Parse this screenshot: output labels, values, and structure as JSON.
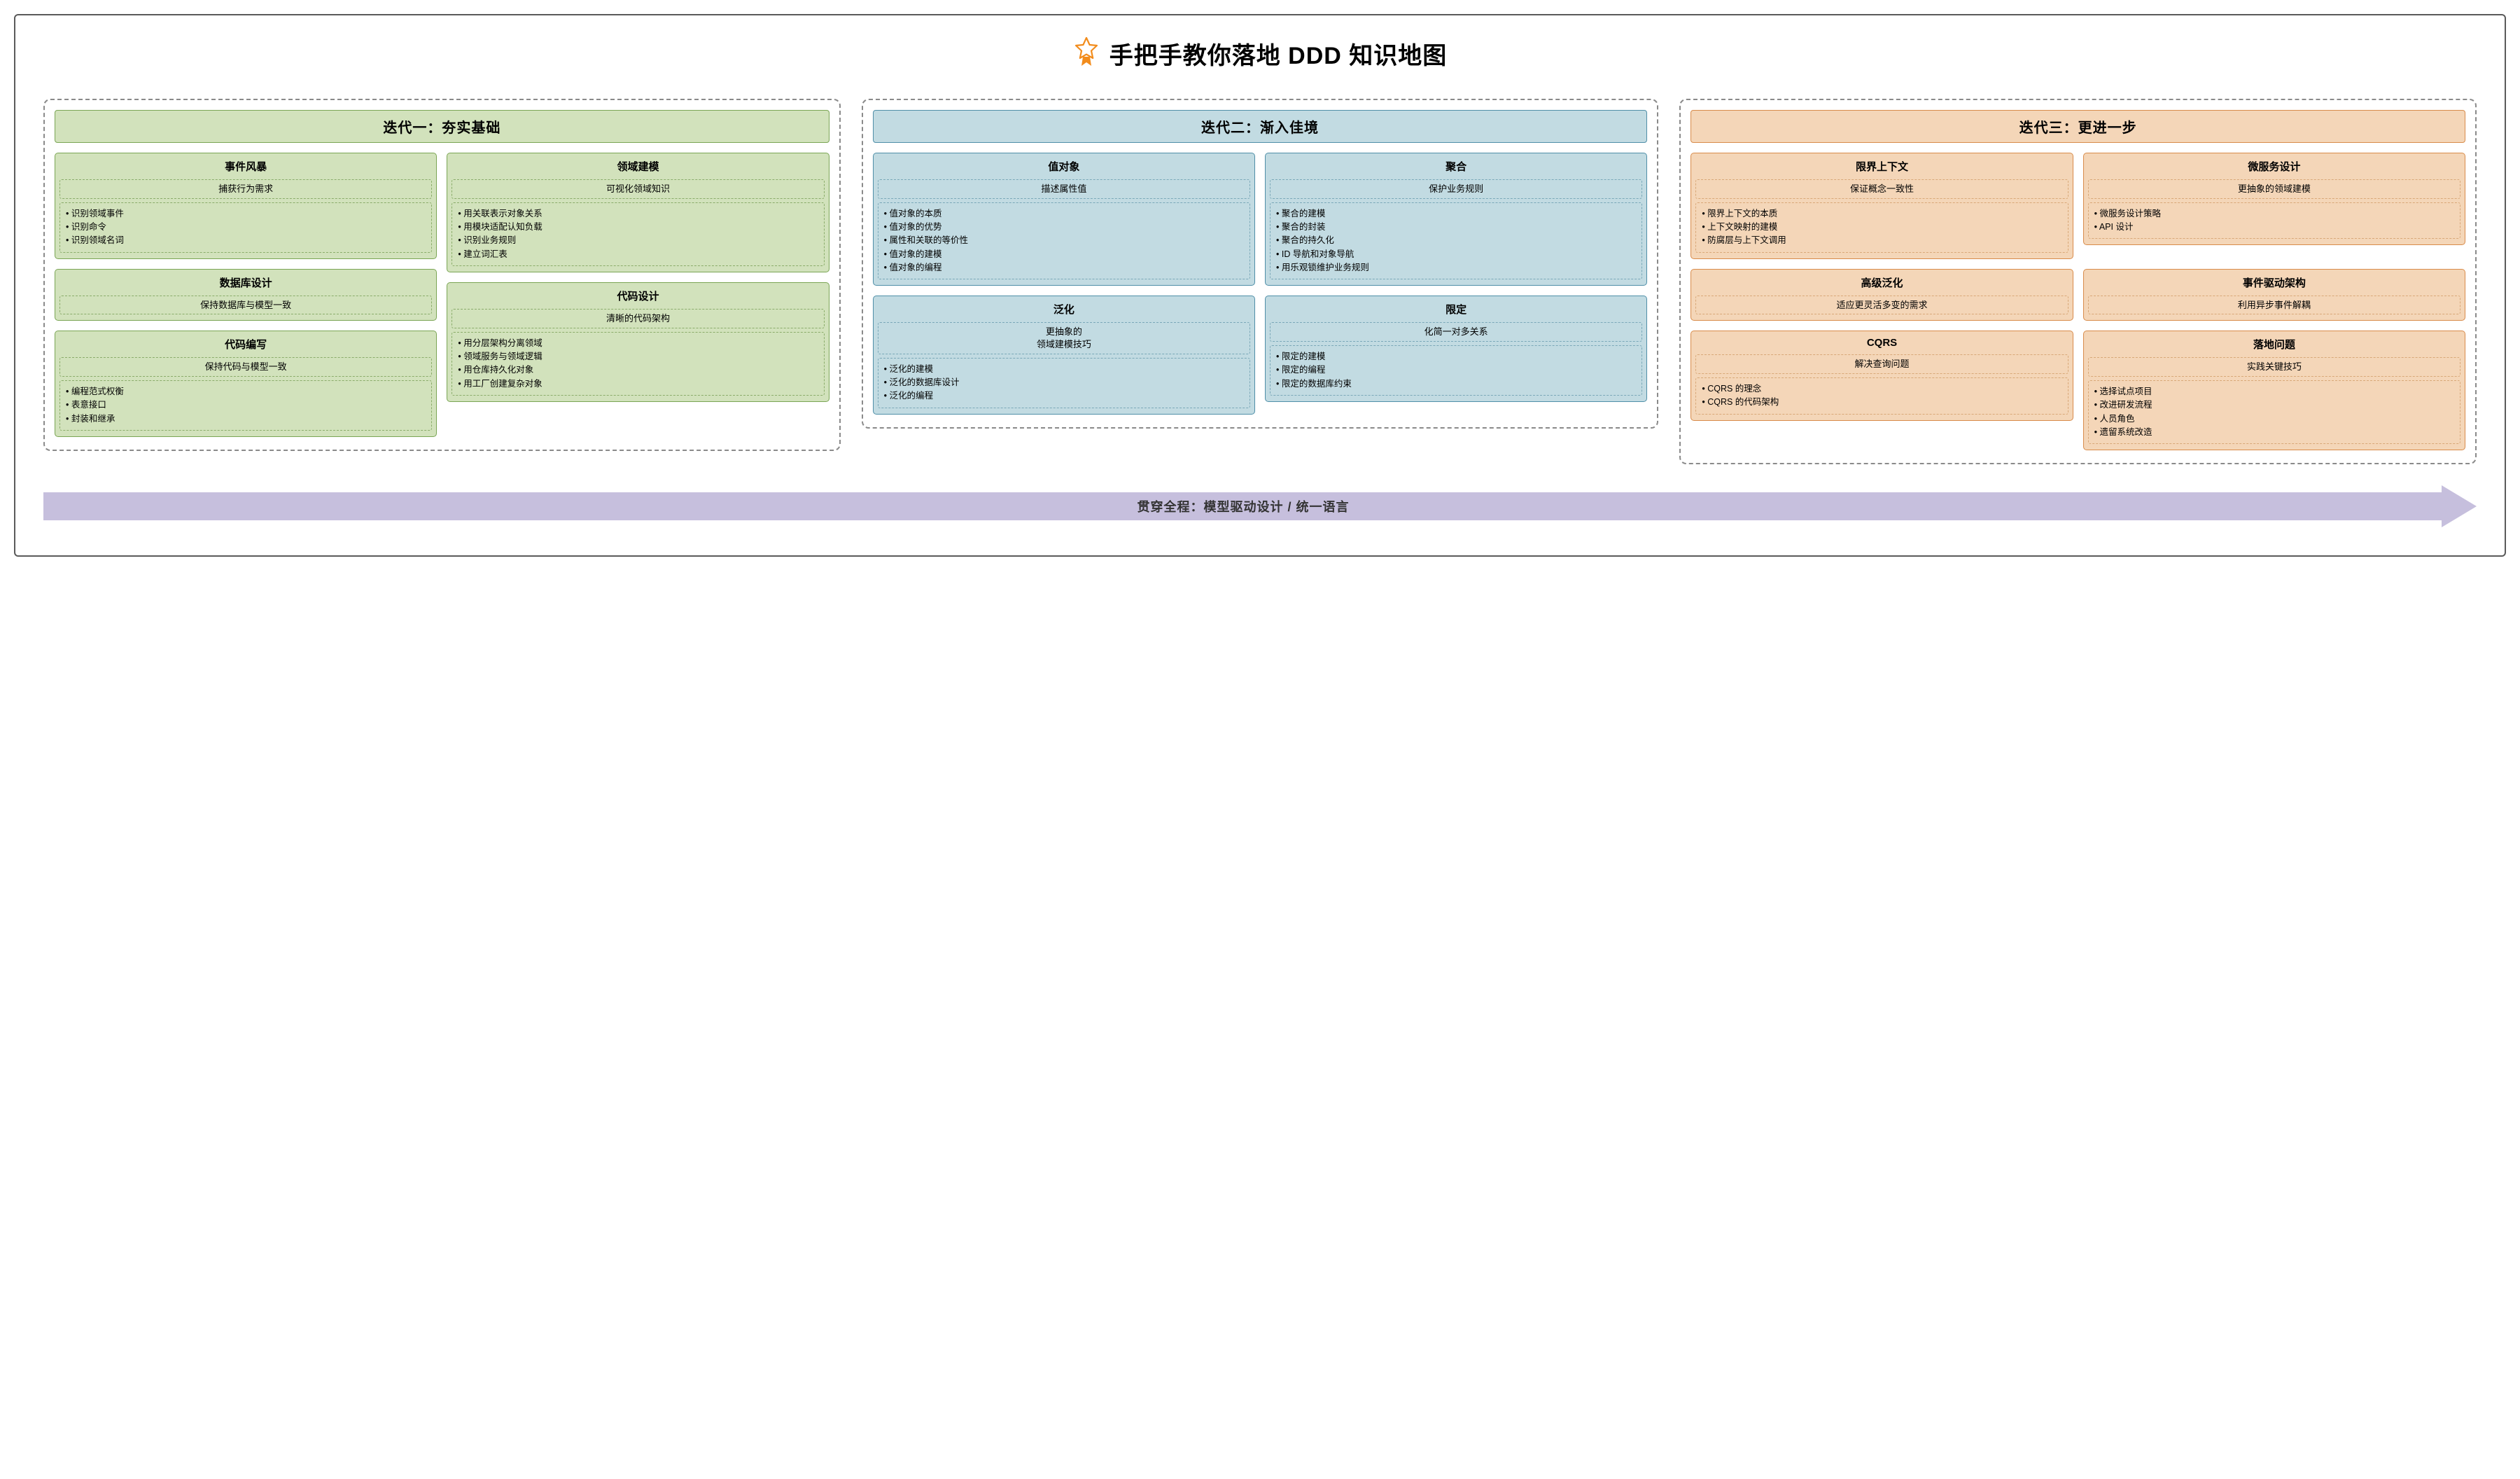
{
  "title": "手把手教你落地 DDD 知识地图",
  "icon_color": "#f28c1c",
  "frame_border": "#5a5a5a",
  "arrow": {
    "label": "贯穿全程：模型驱动设计 / 统一语言",
    "fill": "#c6bfdd",
    "text_color": "#333333"
  },
  "groups": [
    {
      "id": "g1",
      "header": "迭代一：夯实基础",
      "dash_color": "#8a8a8a",
      "border_color": "#7aa554",
      "fill_color": "#d2e2bc",
      "inner_dash": "#8aac6a",
      "layout": "stacked-pair",
      "columns": [
        [
          {
            "title": "事件风暴",
            "sub": "捕获行为需求",
            "items": [
              "识别领域事件",
              "识别命令",
              "识别领域名词"
            ]
          },
          {
            "title": "数据库设计",
            "sub": "保持数据库与模型一致",
            "items": []
          },
          {
            "title": "代码编写",
            "sub": "保持代码与模型一致",
            "items": [
              "编程范式权衡",
              "表意接口",
              "封装和继承"
            ]
          }
        ],
        [
          {
            "title": "领域建模",
            "sub": "可视化领域知识",
            "items": [
              "用关联表示对象关系",
              "用模块适配认知负载",
              "识别业务规则",
              "建立词汇表"
            ]
          },
          {
            "title": "代码设计",
            "sub": "清晰的代码架构",
            "items": [
              "用分层架构分离领域",
              "领域服务与领域逻辑",
              "用仓库持久化对象",
              "用工厂创建复杂对象"
            ]
          }
        ]
      ]
    },
    {
      "id": "g2",
      "header": "迭代二：渐入佳境",
      "dash_color": "#8a8a8a",
      "border_color": "#4f8fa8",
      "fill_color": "#c2dbe2",
      "inner_dash": "#7aa8b8",
      "layout": "grid",
      "cards": [
        {
          "title": "值对象",
          "sub": "描述属性值",
          "items": [
            "值对象的本质",
            "值对象的优势",
            "属性和关联的等价性",
            "值对象的建模",
            "值对象的编程"
          ]
        },
        {
          "title": "聚合",
          "sub": "保护业务规则",
          "items": [
            "聚合的建模",
            "聚合的封装",
            "聚合的持久化",
            "ID 导航和对象导航",
            "用乐观锁维护业务规则"
          ]
        },
        {
          "title": "泛化",
          "sub": "更抽象的\n领域建模技巧",
          "items": [
            "泛化的建模",
            "泛化的数据库设计",
            "泛化的编程"
          ]
        },
        {
          "title": "限定",
          "sub": "化简一对多关系",
          "items": [
            "限定的建模",
            "限定的编程",
            "限定的数据库约束"
          ]
        }
      ]
    },
    {
      "id": "g3",
      "header": "迭代三：更进一步",
      "dash_color": "#8a8a8a",
      "border_color": "#d88b4a",
      "fill_color": "#f4d6b8",
      "inner_dash": "#d8a878",
      "layout": "grid",
      "cards": [
        {
          "title": "限界上下文",
          "sub": "保证概念一致性",
          "items": [
            "限界上下文的本质",
            "上下文映射的建模",
            "防腐层与上下文调用"
          ]
        },
        {
          "title": "微服务设计",
          "sub": "更抽象的领域建模",
          "items": [
            "微服务设计策略",
            "API 设计"
          ]
        },
        {
          "title": "高级泛化",
          "sub": "适应更灵活多变的需求",
          "items": []
        },
        {
          "title": "事件驱动架构",
          "sub": "利用异步事件解耦",
          "items": []
        },
        {
          "title": "CQRS",
          "sub": "解决查询问题",
          "items": [
            "CQRS 的理念",
            "CQRS 的代码架构"
          ]
        },
        {
          "title": "落地问题",
          "sub": "实践关键技巧",
          "items": [
            "选择试点项目",
            "改进研发流程",
            "人员角色",
            "遗留系统改造"
          ]
        }
      ]
    }
  ]
}
